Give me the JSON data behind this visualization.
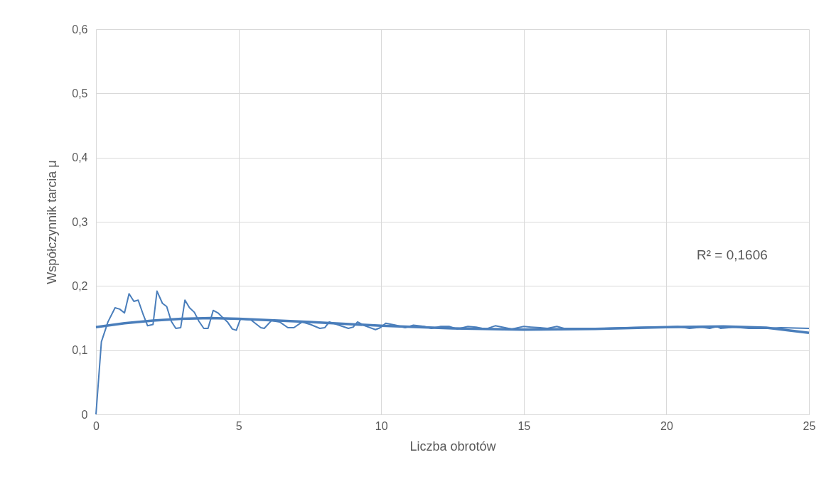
{
  "chart_data": {
    "type": "line",
    "xlabel": "Liczba obrotów",
    "ylabel": "Współczynnik tarcia μ",
    "xlim": [
      0,
      25
    ],
    "xticks": [
      0,
      5,
      10,
      15,
      20,
      25
    ],
    "ylim": [
      0,
      0.6
    ],
    "yticks": [
      {
        "value": 0,
        "label": "0"
      },
      {
        "value": 0.1,
        "label": "0,1"
      },
      {
        "value": 0.2,
        "label": "0,2"
      },
      {
        "value": 0.3,
        "label": "0,3"
      },
      {
        "value": 0.4,
        "label": "0,4"
      },
      {
        "value": 0.5,
        "label": "0,5"
      },
      {
        "value": 0.6,
        "label": "0,6"
      }
    ],
    "grid": true,
    "marker": "none",
    "line_style": "solid",
    "annotations": [
      "R² = 0,1606"
    ],
    "series": [
      {
        "color": "#4a7ebb",
        "x": [
          0,
          0.19,
          0.42,
          0.67,
          0.83,
          1.0,
          1.16,
          1.33,
          1.48,
          1.66,
          1.81,
          2.0,
          2.14,
          2.33,
          2.48,
          2.64,
          2.8,
          2.97,
          3.12,
          3.28,
          3.45,
          3.61,
          3.78,
          3.93,
          4.11,
          4.28,
          4.44,
          4.61,
          4.78,
          4.92,
          5.07,
          5.44,
          5.78,
          5.9,
          6.15,
          6.44,
          6.73,
          6.94,
          7.23,
          7.52,
          7.85,
          8.02,
          8.18,
          8.52,
          8.85,
          9.02,
          9.17,
          9.43,
          9.8,
          9.97,
          10.16,
          10.51,
          10.84,
          11.13,
          11.51,
          11.76,
          12.09,
          12.38,
          12.67,
          13.04,
          13.33,
          13.67,
          14.0,
          14.25,
          14.58,
          15.0,
          15.25,
          15.58,
          15.83,
          16.16,
          16.41,
          16.99,
          17.82,
          18.65,
          19.4,
          19.98,
          20.4,
          20.81,
          21.23,
          21.52,
          21.77,
          21.9,
          22.39,
          22.89,
          23.55,
          24.01,
          25.0
        ],
        "values": [
          0,
          0.113,
          0.144,
          0.166,
          0.164,
          0.158,
          0.188,
          0.176,
          0.178,
          0.155,
          0.138,
          0.14,
          0.192,
          0.173,
          0.168,
          0.145,
          0.134,
          0.135,
          0.178,
          0.166,
          0.159,
          0.145,
          0.134,
          0.134,
          0.162,
          0.158,
          0.151,
          0.144,
          0.133,
          0.131,
          0.149,
          0.147,
          0.135,
          0.134,
          0.146,
          0.144,
          0.135,
          0.135,
          0.144,
          0.14,
          0.134,
          0.135,
          0.144,
          0.139,
          0.134,
          0.136,
          0.144,
          0.138,
          0.132,
          0.135,
          0.142,
          0.139,
          0.135,
          0.139,
          0.137,
          0.134,
          0.137,
          0.137,
          0.133,
          0.137,
          0.136,
          0.133,
          0.138,
          0.136,
          0.133,
          0.137,
          0.136,
          0.135,
          0.134,
          0.137,
          0.134,
          0.134,
          0.134,
          0.135,
          0.136,
          0.136,
          0.137,
          0.134,
          0.136,
          0.134,
          0.137,
          0.134,
          0.136,
          0.134,
          0.134,
          0.135,
          0.134
        ]
      },
      {
        "type": "line",
        "color": "#4a7ebb",
        "x": [
          0,
          1,
          2,
          3,
          4,
          5,
          7.5,
          10,
          12.5,
          15,
          17.5,
          20,
          22,
          23.5,
          25
        ],
        "values": [
          0.136,
          0.142,
          0.146,
          0.149,
          0.15,
          0.149,
          0.144,
          0.138,
          0.134,
          0.132,
          0.133,
          0.136,
          0.137,
          0.135,
          0.127
        ]
      }
    ]
  }
}
